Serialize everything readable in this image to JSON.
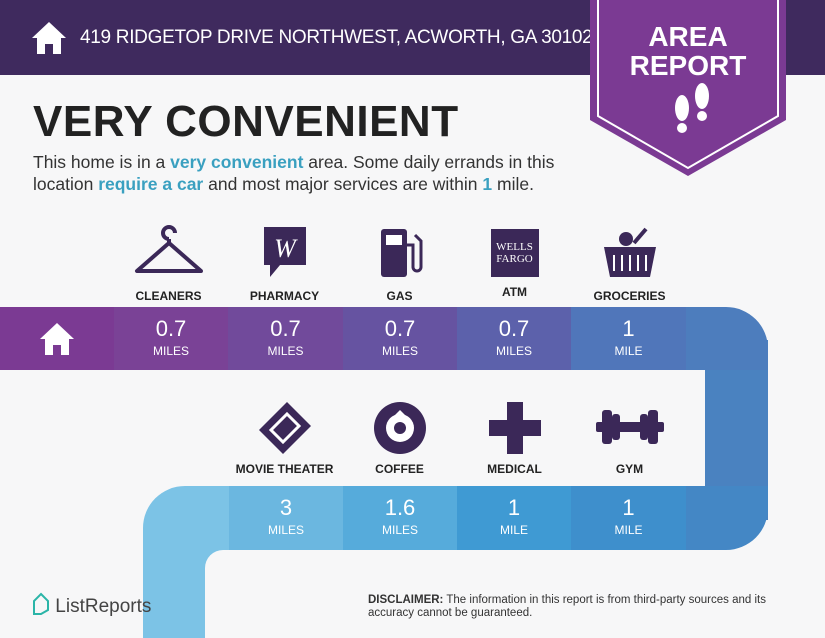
{
  "header": {
    "address": "419 RIDGETOP DRIVE NORTHWEST, ACWORTH, GA 30102",
    "badge_line1": "AREA",
    "badge_line2": "REPORT"
  },
  "title": "VERY CONVENIENT",
  "summary": {
    "p1": "This home is in a ",
    "h1": "very convenient",
    "p2": " area. Some daily errands in this location ",
    "h2": "require a car",
    "p3": " and most major services are within ",
    "h3": "1",
    "p4": " mile."
  },
  "top_row": [
    {
      "label": "CLEANERS",
      "value": "0.7",
      "unit": "MILES",
      "icon": "hanger-icon"
    },
    {
      "label": "PHARMACY",
      "value": "0.7",
      "unit": "MILES",
      "icon": "walgreens-icon"
    },
    {
      "label": "GAS",
      "value": "0.7",
      "unit": "MILES",
      "icon": "gas-pump-icon"
    },
    {
      "label": "ATM",
      "value": "0.7",
      "unit": "MILES",
      "icon": "wells-fargo-icon",
      "logo_text": "WELLS FARGO"
    },
    {
      "label": "GROCERIES",
      "value": "1",
      "unit": "MILE",
      "icon": "basket-icon"
    }
  ],
  "bottom_row": [
    {
      "label": "MOVIE THEATER",
      "value": "3",
      "unit": "MILES",
      "icon": "ticket-icon"
    },
    {
      "label": "COFFEE",
      "value": "1.6",
      "unit": "MILES",
      "icon": "starbucks-icon"
    },
    {
      "label": "MEDICAL",
      "value": "1",
      "unit": "MILE",
      "icon": "cross-icon"
    },
    {
      "label": "GYM",
      "value": "1",
      "unit": "MILE",
      "icon": "dumbbell-icon"
    }
  ],
  "disclaimer": {
    "bold": "DISCLAIMER:",
    "text": " The information in this report is from third-party sources and its accuracy cannot be guaranteed."
  },
  "brand": "ListReports",
  "colors": {
    "header": "#3f2a5e",
    "badge": "#7b3a93",
    "accent": "#3aa0c0",
    "icon": "#3b2858"
  }
}
